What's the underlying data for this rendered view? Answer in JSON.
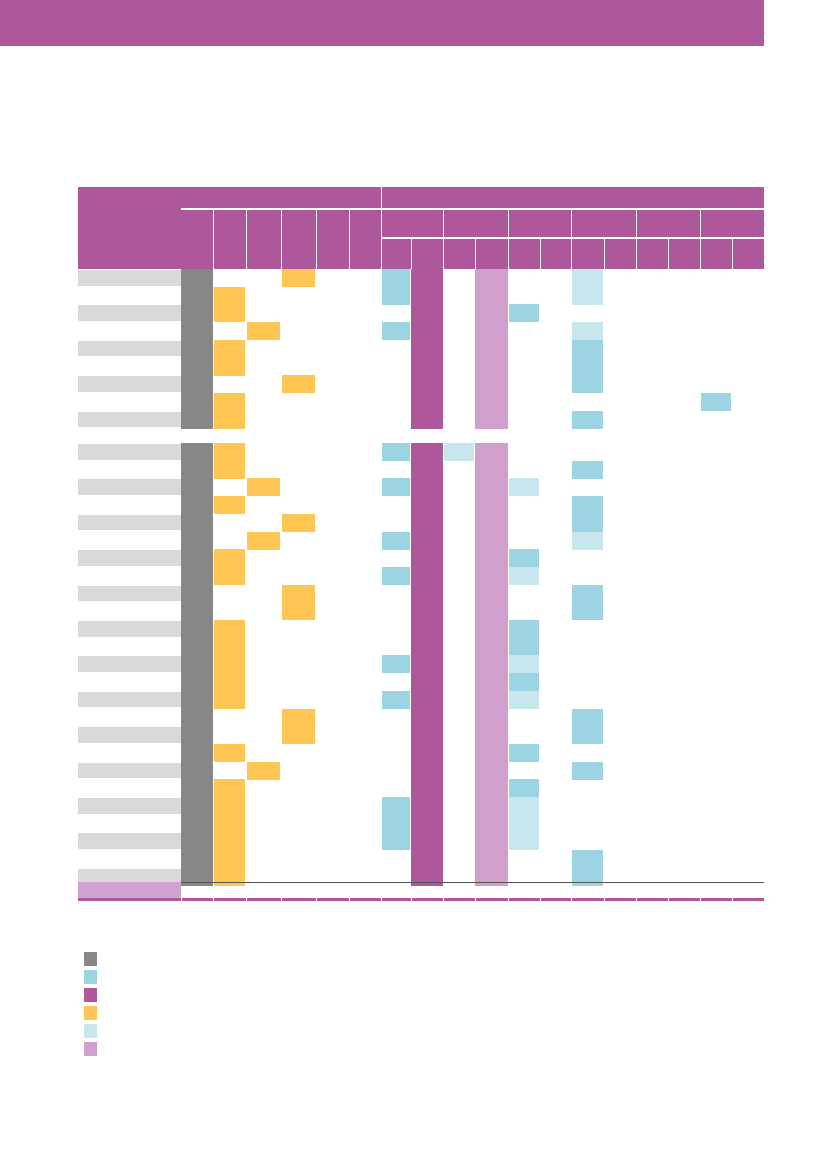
{
  "colors": {
    "header": "#ad579d",
    "row_label": "#d9d9d9",
    "grey": "#878787",
    "blue": "#9dd4e4",
    "purple": "#ad579d",
    "yellow": "#fdc653",
    "light_blue": "#c7e6ee",
    "light_purple": "#d09fcc",
    "footer_label": "#d0a2cf",
    "rule": "#ad579d"
  },
  "legend": [
    {
      "color": "#878787",
      "icon": "grey-square",
      "label": ""
    },
    {
      "color": "#9dd4e4",
      "icon": "blue-square",
      "label": ""
    },
    {
      "color": "#ad579d",
      "icon": "purple-square",
      "label": ""
    },
    {
      "color": "#fdc653",
      "icon": "yellow-square",
      "label": ""
    },
    {
      "color": "#c7e6ee",
      "icon": "light-blue-square",
      "label": ""
    },
    {
      "color": "#d09fcc",
      "icon": "light-purple-square",
      "label": ""
    }
  ],
  "groups": [
    {
      "rows": [
        {
          "label": "",
          "cells": [
            "G",
            "",
            "",
            "Y",
            "",
            "",
            "B",
            "P",
            "",
            "L",
            "",
            "",
            "C",
            "",
            "",
            "",
            "",
            ""
          ]
        },
        {
          "label": "",
          "cells": [
            "G",
            "Y",
            "",
            "",
            "",
            "",
            "B",
            "P",
            "",
            "L",
            "",
            "",
            "C",
            "",
            "",
            "",
            "",
            ""
          ]
        },
        {
          "label": "",
          "cells": [
            "G",
            "Y",
            "",
            "",
            "",
            "",
            "",
            "P",
            "",
            "L",
            "B",
            "",
            "",
            "",
            "",
            "",
            "",
            ""
          ]
        },
        {
          "label": "",
          "cells": [
            "G",
            "",
            "Y",
            "",
            "",
            "",
            "B",
            "P",
            "",
            "L",
            "",
            "",
            "C",
            "",
            "",
            "",
            "",
            ""
          ]
        },
        {
          "label": "",
          "cells": [
            "G",
            "Y",
            "",
            "",
            "",
            "",
            "",
            "P",
            "",
            "L",
            "",
            "",
            "B",
            "",
            "",
            "",
            "",
            ""
          ]
        },
        {
          "label": "",
          "cells": [
            "G",
            "Y",
            "",
            "",
            "",
            "",
            "",
            "P",
            "",
            "L",
            "",
            "",
            "B",
            "",
            "",
            "",
            "",
            ""
          ]
        },
        {
          "label": "",
          "cells": [
            "G",
            "",
            "",
            "Y",
            "",
            "",
            "",
            "P",
            "",
            "L",
            "",
            "",
            "B",
            "",
            "",
            "",
            "",
            ""
          ]
        },
        {
          "label": "",
          "cells": [
            "G",
            "Y",
            "",
            "",
            "",
            "",
            "",
            "P",
            "",
            "L",
            "",
            "",
            "",
            "",
            "",
            "",
            "B",
            ""
          ]
        },
        {
          "label": "",
          "cells": [
            "G",
            "Y",
            "",
            "",
            "",
            "",
            "",
            "P",
            "",
            "L",
            "",
            "",
            "B",
            "",
            "",
            "",
            "",
            ""
          ]
        }
      ]
    },
    {
      "rows": [
        {
          "label": "",
          "cells": [
            "G",
            "Y",
            "",
            "",
            "",
            "",
            "B",
            "P",
            "C",
            "L",
            "",
            "",
            "",
            "",
            "",
            "",
            "",
            ""
          ]
        },
        {
          "label": "",
          "cells": [
            "G",
            "Y",
            "",
            "",
            "",
            "",
            "",
            "P",
            "",
            "L",
            "",
            "",
            "B",
            "",
            "",
            "",
            "",
            ""
          ]
        },
        {
          "label": "",
          "cells": [
            "G",
            "",
            "Y",
            "",
            "",
            "",
            "B",
            "P",
            "",
            "L",
            "C",
            "",
            "",
            "",
            "",
            "",
            "",
            ""
          ]
        },
        {
          "label": "",
          "cells": [
            "G",
            "Y",
            "",
            "",
            "",
            "",
            "",
            "P",
            "",
            "L",
            "",
            "",
            "B",
            "",
            "",
            "",
            "",
            ""
          ]
        },
        {
          "label": "",
          "cells": [
            "G",
            "",
            "",
            "Y",
            "",
            "",
            "",
            "P",
            "",
            "L",
            "",
            "",
            "B",
            "",
            "",
            "",
            "",
            ""
          ]
        },
        {
          "label": "",
          "cells": [
            "G",
            "",
            "Y",
            "",
            "",
            "",
            "B",
            "P",
            "",
            "L",
            "",
            "",
            "C",
            "",
            "",
            "",
            "",
            ""
          ]
        },
        {
          "label": "",
          "cells": [
            "G",
            "Y",
            "",
            "",
            "",
            "",
            "",
            "P",
            "",
            "L",
            "B",
            "",
            "",
            "",
            "",
            "",
            "",
            ""
          ]
        },
        {
          "label": "",
          "cells": [
            "G",
            "Y",
            "",
            "",
            "",
            "",
            "B",
            "P",
            "",
            "L",
            "C",
            "",
            "",
            "",
            "",
            "",
            "",
            ""
          ]
        },
        {
          "label": "",
          "cells": [
            "G",
            "",
            "",
            "Y",
            "",
            "",
            "",
            "P",
            "",
            "L",
            "",
            "",
            "B",
            "",
            "",
            "",
            "",
            ""
          ]
        },
        {
          "label": "",
          "cells": [
            "G",
            "",
            "",
            "Y",
            "",
            "",
            "",
            "P",
            "",
            "L",
            "",
            "",
            "B",
            "",
            "",
            "",
            "",
            ""
          ]
        },
        {
          "label": "",
          "cells": [
            "G",
            "Y",
            "",
            "",
            "",
            "",
            "",
            "P",
            "",
            "L",
            "B",
            "",
            "",
            "",
            "",
            "",
            "",
            ""
          ]
        },
        {
          "label": "",
          "cells": [
            "G",
            "Y",
            "",
            "",
            "",
            "",
            "",
            "P",
            "",
            "L",
            "B",
            "",
            "",
            "",
            "",
            "",
            "",
            ""
          ]
        },
        {
          "label": "",
          "cells": [
            "G",
            "Y",
            "",
            "",
            "",
            "",
            "B",
            "P",
            "",
            "L",
            "C",
            "",
            "",
            "",
            "",
            "",
            "",
            ""
          ]
        },
        {
          "label": "",
          "cells": [
            "G",
            "Y",
            "",
            "",
            "",
            "",
            "",
            "P",
            "",
            "L",
            "B",
            "",
            "",
            "",
            "",
            "",
            "",
            ""
          ]
        },
        {
          "label": "",
          "cells": [
            "G",
            "Y",
            "",
            "",
            "",
            "",
            "B",
            "P",
            "",
            "L",
            "C",
            "",
            "",
            "",
            "",
            "",
            "",
            ""
          ]
        },
        {
          "label": "",
          "cells": [
            "G",
            "",
            "",
            "Y",
            "",
            "",
            "",
            "P",
            "",
            "L",
            "",
            "",
            "B",
            "",
            "",
            "",
            "",
            ""
          ]
        },
        {
          "label": "",
          "cells": [
            "G",
            "",
            "",
            "Y",
            "",
            "",
            "",
            "P",
            "",
            "L",
            "",
            "",
            "B",
            "",
            "",
            "",
            "",
            ""
          ]
        },
        {
          "label": "",
          "cells": [
            "G",
            "Y",
            "",
            "",
            "",
            "",
            "",
            "P",
            "",
            "L",
            "B",
            "",
            "",
            "",
            "",
            "",
            "",
            ""
          ]
        },
        {
          "label": "",
          "cells": [
            "G",
            "",
            "Y",
            "",
            "",
            "",
            "",
            "P",
            "",
            "L",
            "",
            "",
            "B",
            "",
            "",
            "",
            "",
            ""
          ]
        },
        {
          "label": "",
          "cells": [
            "G",
            "Y",
            "",
            "",
            "",
            "",
            "",
            "P",
            "",
            "L",
            "B",
            "",
            "",
            "",
            "",
            "",
            "",
            ""
          ]
        },
        {
          "label": "",
          "cells": [
            "G",
            "Y",
            "",
            "",
            "",
            "",
            "B",
            "P",
            "",
            "L",
            "C",
            "",
            "",
            "",
            "",
            "",
            "",
            ""
          ]
        },
        {
          "label": "",
          "cells": [
            "G",
            "Y",
            "",
            "",
            "",
            "",
            "B",
            "P",
            "",
            "L",
            "C",
            "",
            "",
            "",
            "",
            "",
            "",
            ""
          ]
        },
        {
          "label": "",
          "cells": [
            "G",
            "Y",
            "",
            "",
            "",
            "",
            "B",
            "P",
            "",
            "L",
            "C",
            "",
            "",
            "",
            "",
            "",
            "",
            ""
          ]
        },
        {
          "label": "",
          "cells": [
            "G",
            "Y",
            "",
            "",
            "",
            "",
            "",
            "P",
            "",
            "L",
            "",
            "",
            "B",
            "",
            "",
            "",
            "",
            ""
          ]
        },
        {
          "label": "",
          "cells": [
            "G",
            "Y",
            "",
            "",
            "",
            "",
            "",
            "P",
            "",
            "L",
            "",
            "",
            "B",
            "",
            "",
            "",
            "",
            ""
          ]
        }
      ]
    }
  ],
  "footer": {
    "label": ""
  }
}
